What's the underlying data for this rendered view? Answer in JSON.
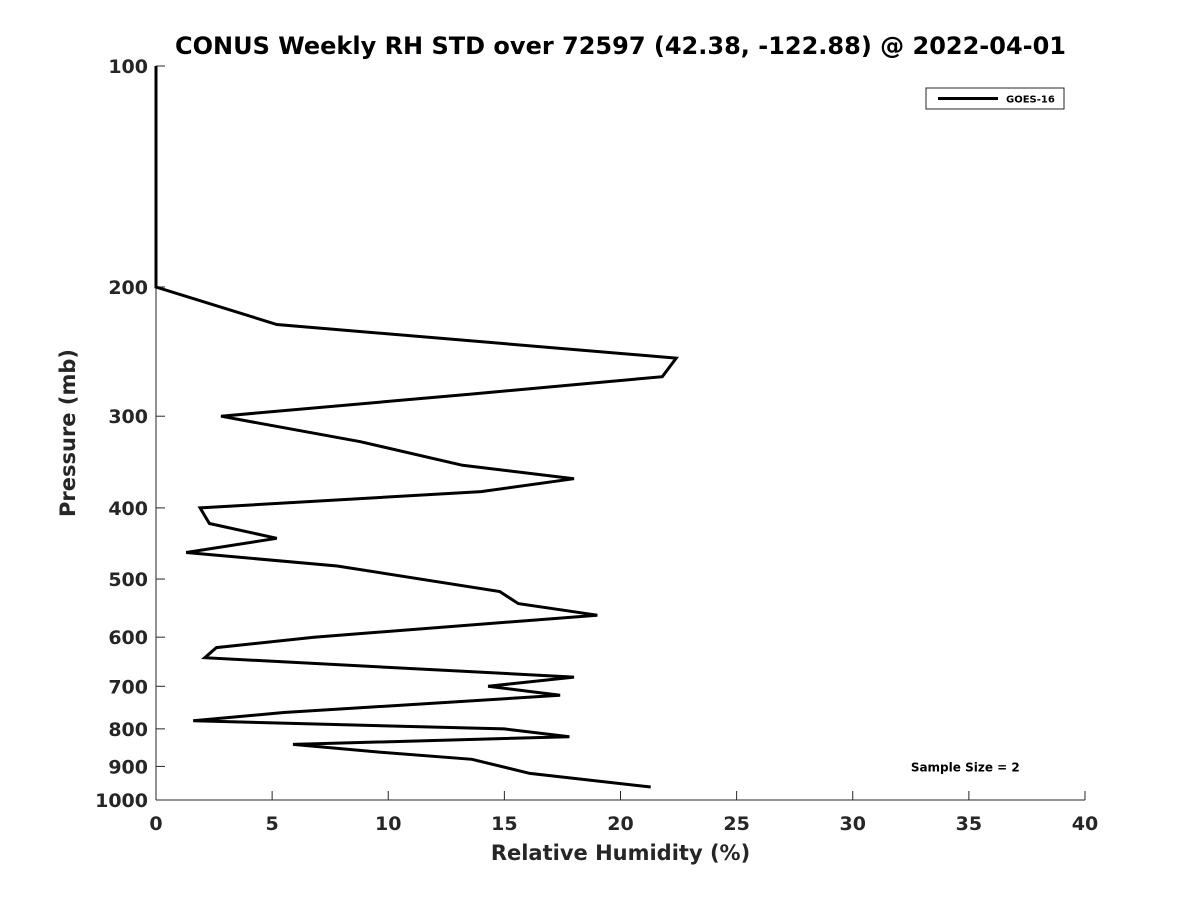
{
  "chart_data": {
    "type": "line",
    "title": "CONUS Weekly RH STD over 72597 (42.38, -122.88) @ 2022-04-01",
    "xlabel": "Relative Humidity (%)",
    "ylabel": "Pressure (mb)",
    "xlim": [
      0,
      40
    ],
    "ylim": [
      100,
      1000
    ],
    "y_scale": "log",
    "y_reversed": true,
    "x_ticks": [
      0,
      5,
      10,
      15,
      20,
      25,
      30,
      35,
      40
    ],
    "y_ticks": [
      100,
      200,
      300,
      400,
      500,
      600,
      700,
      800,
      900,
      1000
    ],
    "grid": false,
    "legend_position": "top-right",
    "series": [
      {
        "name": "GOES-16",
        "color": "#000000",
        "points": [
          {
            "x": 0.0,
            "y": 100
          },
          {
            "x": 0.0,
            "y": 150
          },
          {
            "x": 0.0,
            "y": 200
          },
          {
            "x": 5.2,
            "y": 225
          },
          {
            "x": 22.4,
            "y": 250
          },
          {
            "x": 21.8,
            "y": 265
          },
          {
            "x": 13.5,
            "y": 280
          },
          {
            "x": 2.8,
            "y": 300
          },
          {
            "x": 8.8,
            "y": 325
          },
          {
            "x": 13.2,
            "y": 350
          },
          {
            "x": 18.0,
            "y": 365
          },
          {
            "x": 14.0,
            "y": 380
          },
          {
            "x": 1.9,
            "y": 400
          },
          {
            "x": 2.3,
            "y": 420
          },
          {
            "x": 5.2,
            "y": 440
          },
          {
            "x": 1.3,
            "y": 460
          },
          {
            "x": 7.8,
            "y": 480
          },
          {
            "x": 14.8,
            "y": 520
          },
          {
            "x": 15.6,
            "y": 540
          },
          {
            "x": 19.0,
            "y": 560
          },
          {
            "x": 6.8,
            "y": 600
          },
          {
            "x": 2.6,
            "y": 620
          },
          {
            "x": 2.1,
            "y": 640
          },
          {
            "x": 18.0,
            "y": 680
          },
          {
            "x": 14.3,
            "y": 700
          },
          {
            "x": 17.4,
            "y": 720
          },
          {
            "x": 5.5,
            "y": 760
          },
          {
            "x": 1.6,
            "y": 780
          },
          {
            "x": 15.0,
            "y": 800
          },
          {
            "x": 17.8,
            "y": 820
          },
          {
            "x": 5.9,
            "y": 840
          },
          {
            "x": 9.5,
            "y": 860
          },
          {
            "x": 13.6,
            "y": 880
          },
          {
            "x": 16.1,
            "y": 920
          },
          {
            "x": 21.3,
            "y": 960
          }
        ]
      }
    ],
    "annotations": [
      {
        "text": "Sample Size = 2",
        "x": 32.5,
        "y": 900
      }
    ]
  }
}
